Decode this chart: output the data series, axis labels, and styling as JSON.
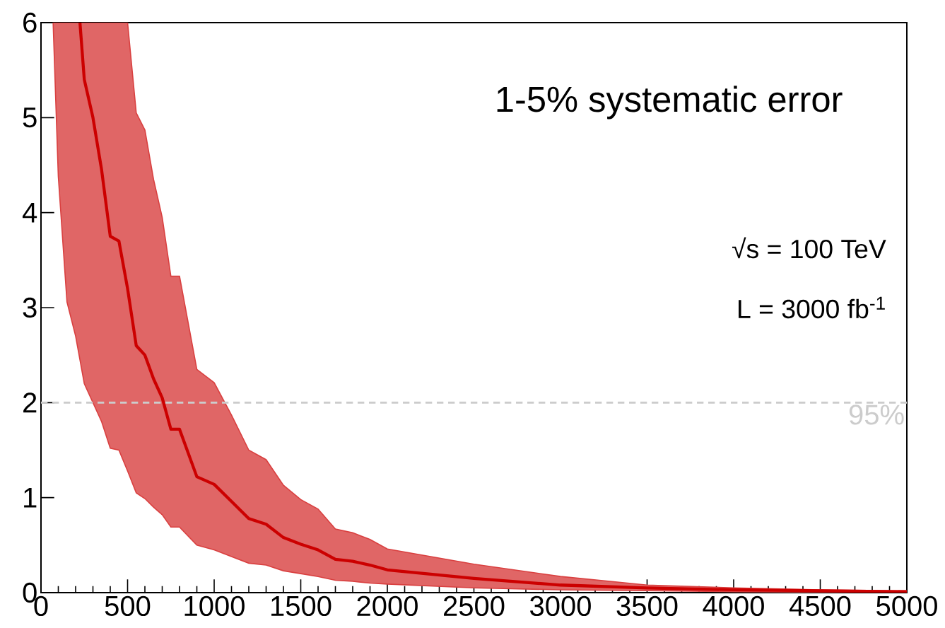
{
  "chart_data": {
    "type": "line",
    "xlim": [
      0,
      5000
    ],
    "ylim": [
      0,
      6
    ],
    "xticks": [
      0,
      500,
      1000,
      1500,
      2000,
      2500,
      3000,
      3500,
      4000,
      4500,
      5000
    ],
    "yticks": [
      0,
      1,
      2,
      3,
      4,
      5,
      6
    ],
    "grid": false,
    "marker": "none",
    "line_style": "solid",
    "annotations": [
      "1-5% systematic error",
      "√s = 100 TeV",
      "L = 3000 fb$^{-1}$",
      {
        "text": "95%",
        "x": 5000,
        "y": 2
      }
    ],
    "ref_lines": [
      {
        "axis": "y",
        "value": 2,
        "color": "#cccccc",
        "line_style": "dashed"
      }
    ],
    "series": [
      {
        "color": "#cc0000",
        "x": [
          70,
          100,
          150,
          200,
          225,
          250,
          300,
          350,
          400,
          450,
          500,
          550,
          600,
          650,
          700,
          750,
          800,
          900,
          1000,
          1100,
          1200,
          1300,
          1400,
          1500,
          1600,
          1700,
          1800,
          1900,
          2000,
          2500,
          3000,
          3500,
          4000,
          4500,
          5000
        ],
        "values": [
          null,
          null,
          null,
          null,
          6,
          5.4,
          5.0,
          4.45,
          3.75,
          3.7,
          3.2,
          2.6,
          2.5,
          2.25,
          2.05,
          1.72,
          1.72,
          1.22,
          1.14,
          0.96,
          0.78,
          0.72,
          0.58,
          0.51,
          0.45,
          0.35,
          0.33,
          0.29,
          0.24,
          0.15,
          0.08,
          0.05,
          0.03,
          0.02,
          0.01
        ],
        "upper": [
          6,
          6,
          6,
          6,
          6,
          6,
          6,
          6,
          6,
          6,
          6,
          5.05,
          4.87,
          4.35,
          3.95,
          3.33,
          3.33,
          2.35,
          2.21,
          1.87,
          1.5,
          1.4,
          1.13,
          0.98,
          0.88,
          0.67,
          0.63,
          0.56,
          0.46,
          0.3,
          0.17,
          0.08,
          0.05,
          0.03,
          0.02
        ],
        "lower": [
          6,
          4.38,
          3.06,
          2.7,
          2.45,
          2.2,
          2.0,
          1.8,
          1.52,
          1.5,
          1.28,
          1.05,
          0.99,
          0.9,
          0.82,
          0.69,
          0.69,
          0.5,
          0.45,
          0.38,
          0.31,
          0.29,
          0.23,
          0.2,
          0.17,
          0.13,
          0.12,
          0.1,
          0.09,
          0.05,
          0.03,
          0.02,
          0.01,
          0.005,
          0
        ]
      }
    ]
  }
}
